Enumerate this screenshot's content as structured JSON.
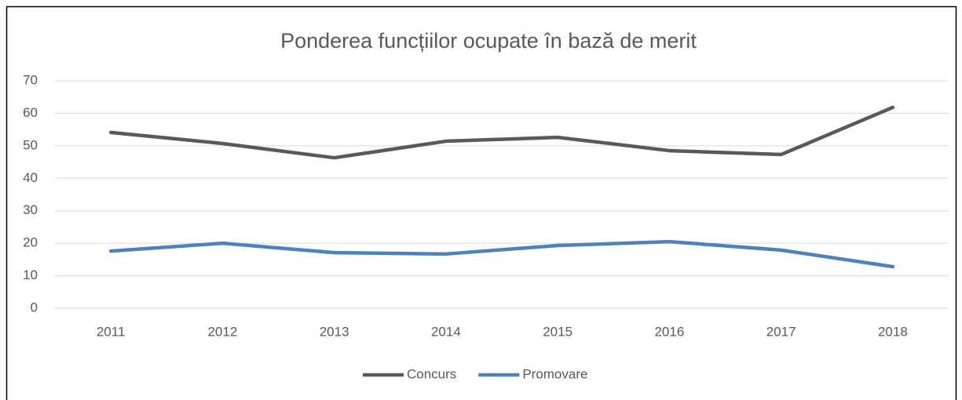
{
  "chart_data": {
    "type": "line",
    "title": "Ponderea funcțiilor ocupate în bază de merit",
    "categories": [
      "2011",
      "2012",
      "2013",
      "2014",
      "2015",
      "2016",
      "2017",
      "2018"
    ],
    "series": [
      {
        "name": "Concurs",
        "color": "#595959",
        "values": [
          54.1,
          50.7,
          46.3,
          51.4,
          52.6,
          48.5,
          47.3,
          61.8
        ]
      },
      {
        "name": "Promovare",
        "color": "#4f81bd",
        "values": [
          17.6,
          20.0,
          17.1,
          16.7,
          19.3,
          20.5,
          17.9,
          12.8
        ]
      }
    ],
    "ylim": [
      0,
      70
    ],
    "yticks": [
      0,
      10,
      20,
      30,
      40,
      50,
      60,
      70
    ],
    "grid": true,
    "legend": "bottom"
  }
}
